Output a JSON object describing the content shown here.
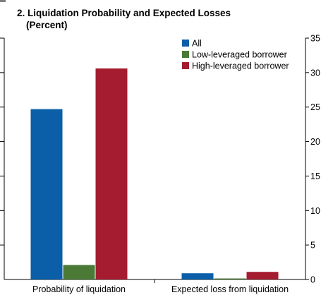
{
  "chart_data": {
    "type": "bar",
    "title": "2. Liquidation Probability and Expected Losses",
    "subtitle": "(Percent)",
    "categories": [
      "Probability of liquidation",
      "Expected loss from liquidation"
    ],
    "series": [
      {
        "name": "All",
        "color": "#0b5ea8",
        "values": [
          24.7,
          0.9
        ]
      },
      {
        "name": "Low-leveraged borrower",
        "color": "#4a7a35",
        "values": [
          2.1,
          0.15
        ]
      },
      {
        "name": "High-leveraged borrower",
        "color": "#a51c30",
        "values": [
          30.6,
          1.1
        ]
      }
    ],
    "ylim": [
      0,
      35
    ],
    "yticks": [
      0,
      5,
      10,
      15,
      20,
      25,
      30,
      35
    ],
    "left_tick_labels_visible": false,
    "grid": false,
    "legend_position": "top-right",
    "xlabel": "",
    "ylabel": ""
  }
}
